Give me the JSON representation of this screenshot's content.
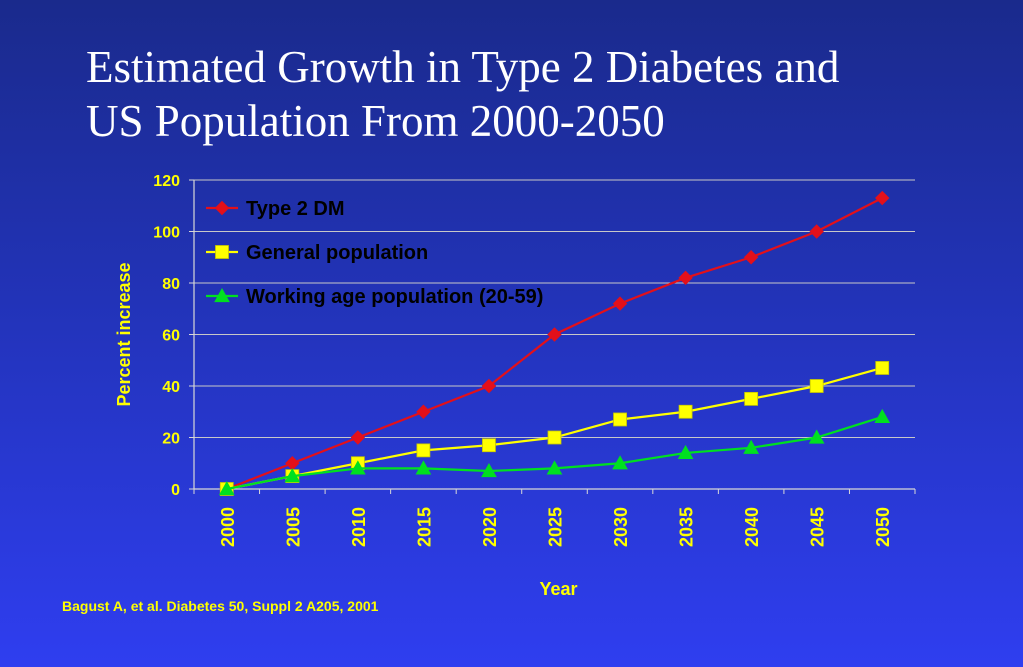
{
  "slide": {
    "title_line1": "Estimated Growth in Type 2 Diabetes and",
    "title_line2": "US Population From 2000-2050",
    "source": "Bagust A, et al. Diabetes 50, Suppl 2 A205, 2001",
    "background_color": "#2233b8"
  },
  "chart_data": {
    "type": "line",
    "xlabel": "Year",
    "ylabel": "Percent increase",
    "x": [
      2000,
      2005,
      2010,
      2015,
      2020,
      2025,
      2030,
      2035,
      2040,
      2045,
      2050
    ],
    "ylim": [
      0,
      120
    ],
    "yticks": [
      0,
      20,
      40,
      60,
      80,
      100,
      120
    ],
    "grid": "horizontal",
    "legend_position": "top-left",
    "text_color": "#ffff00",
    "series": [
      {
        "name": "Type 2 DM",
        "color": "#e3101a",
        "marker": "diamond",
        "values": [
          0,
          10,
          20,
          30,
          40,
          60,
          72,
          82,
          90,
          100,
          113
        ]
      },
      {
        "name": "General population",
        "color": "#ffff00",
        "marker": "square",
        "values": [
          0,
          5,
          10,
          15,
          17,
          20,
          27,
          30,
          35,
          40,
          47
        ]
      },
      {
        "name": "Working age population (20-59)",
        "color": "#00e020",
        "marker": "triangle",
        "values": [
          0,
          5,
          8,
          8,
          7,
          8,
          10,
          14,
          16,
          20,
          28
        ]
      }
    ]
  }
}
